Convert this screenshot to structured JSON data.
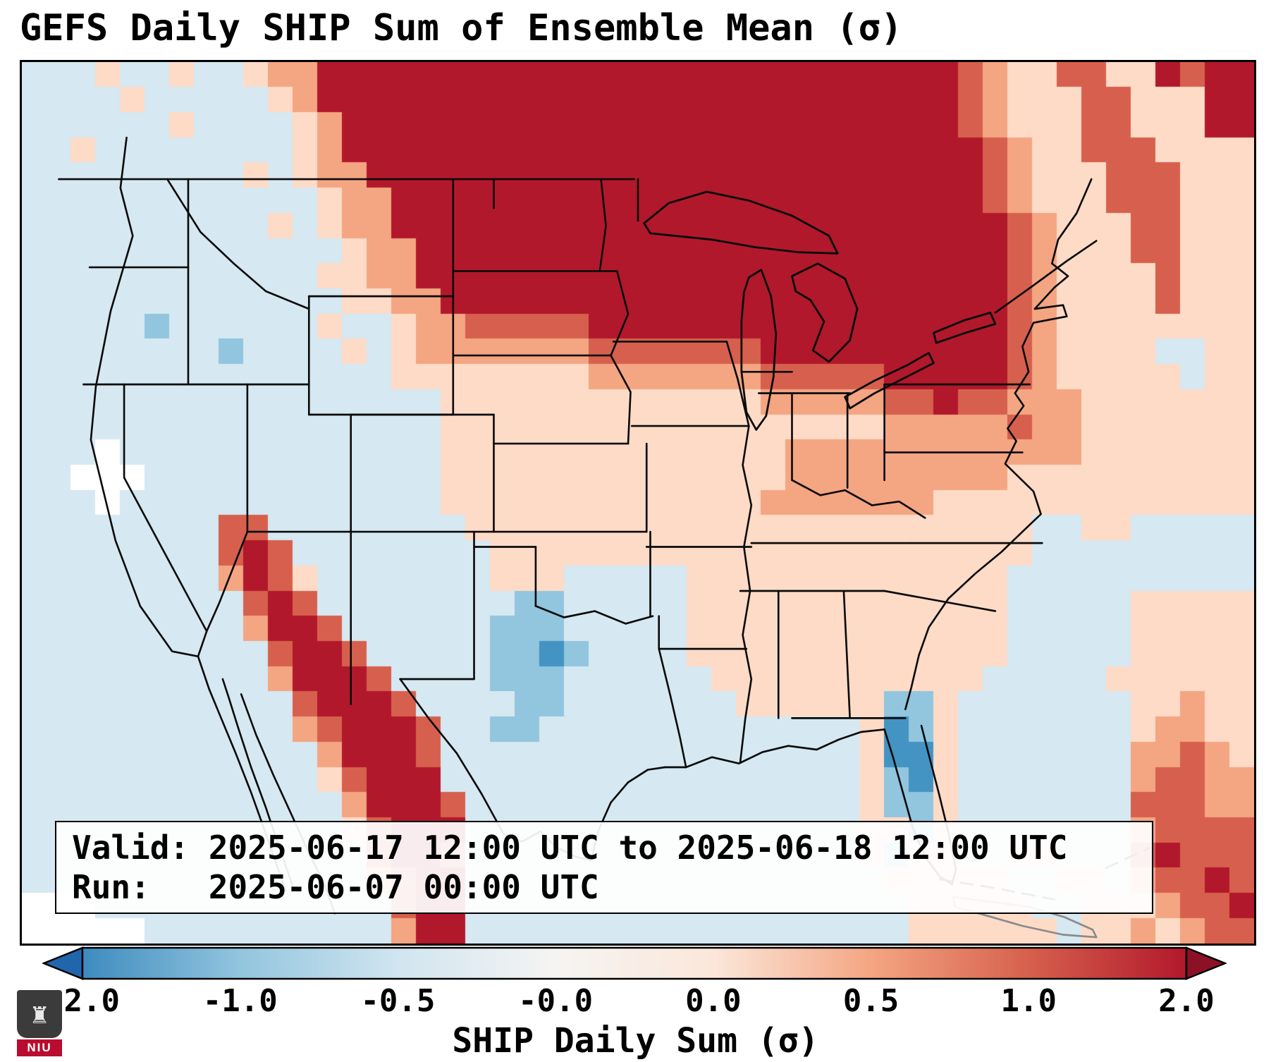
{
  "title": "GEFS Daily SHIP Sum of Ensemble Mean (σ)",
  "info_box": {
    "line1": "Valid: 2025-06-17 12:00 UTC to 2025-06-18 12:00 UTC",
    "line2": "Run:   2025-06-07 00:00 UTC"
  },
  "logo": {
    "text": "NIU",
    "shield_glyph": "♜"
  },
  "chart_data": {
    "type": "heatmap",
    "title": "GEFS Daily SHIP Sum of Ensemble Mean (σ)",
    "region": "Contiguous United States with southern Canada, northern Mexico, Gulf of Mexico and western Atlantic",
    "valid_period": "2025-06-17 12:00 UTC to 2025-06-18 12:00 UTC",
    "run_time": "2025-06-07 00:00 UTC",
    "colorbar": {
      "label": "SHIP Daily Sum (σ)",
      "ticks": [
        "-2.0",
        "-1.0",
        "-0.5",
        "-0.0",
        "0.0",
        "0.5",
        "1.0",
        "2.0"
      ],
      "extend": "both",
      "orientation": "horizontal",
      "under_color": "#2166ac",
      "over_color": "#8c1127",
      "gradient": [
        {
          "offset": 0.0,
          "color": "#3d8bbf"
        },
        {
          "offset": 0.1429,
          "color": "#92c5de"
        },
        {
          "offset": 0.2857,
          "color": "#d1e5f0"
        },
        {
          "offset": 0.4286,
          "color": "#f5f4f2"
        },
        {
          "offset": 0.5714,
          "color": "#fbe7da"
        },
        {
          "offset": 0.7143,
          "color": "#f4a582"
        },
        {
          "offset": 0.8571,
          "color": "#d6604d"
        },
        {
          "offset": 1.0,
          "color": "#b2182b"
        }
      ]
    },
    "palette": {
      "K": "#b2182b",
      "R": "#d6604d",
      "O": "#f4a582",
      "P": "#fddbc7",
      "W": "#f7f7f7",
      "L": "#d6e8f1",
      "M": "#92c5de",
      "B": "#4393c3",
      "X": "#ffffff"
    },
    "palette_meaning": {
      "K": "sigma >= 2.0 (dark red maximum over Upper Midwest / Great Lakes / southern Canada and Sierra Madre in Mexico)",
      "R": "1.0 to 2.0",
      "O": "0.5 to 1.0",
      "P": "0.0 to 0.5",
      "W": "near 0",
      "L": "-0.5 to 0.0 (light blue background over West, South and oceans)",
      "M": "-1.0 to -0.5 (patches over central Texas and Florida peninsula)",
      "B": "below -1.0",
      "X": "no data (white)"
    },
    "grid_rows": 35,
    "grid_cols": 50,
    "grid": [
      "LLLPLLPLLPOOKKKKKKKKKKKKKKKKKKKKKKKKKKROPPRRPPKRKK",
      "LLLLPLLLLLPOKKKKKKKKKKKKKKKKKKKKKKKKKKROPPPRRPPPKK",
      "LLLLLLPLLLLPOKKKKKKKKKKKKKKKKKKKKKKKKKROPPPRRPPPKK",
      "LLPLLLLLLLLPOKKKKKKKKKKKKKKKKKKKKKKKKKKROPPRRRPPPP",
      "LLLLLLLLLPLPOOKKKKKKKKKKKKKKKKKKKKKKKKKROPPPRRRPPP",
      "LLLLLLLLLLLLPOOKKKKKKKKKKKKKKKKKKKKKKKKROPPPRRRPPP",
      "LLLLLLLLLLPLPOOKKKKKKKKKKKKKKKKKKKKKKKKKROPPPRRPPP",
      "LLLLLLLLLLLLLPOOKKKKKKKKKKKKKKKKKKKKKKKKROPPPRRPPP",
      "LLLLLLLLLLLLPPOOKKKKKKKKKKKKKKKKKKKKKKKKROPPPPRPPP",
      "LLLLLLLLLLLLLPPOOKKKKKKKKKKKKKKKKKKKKKKKROPPPPRPPP",
      "LLLLLMLLLLLLPLLPOORRRRRKKKKKKKKKKKKKKKKKROPPPPPPPP",
      "LLLLLLLLMLLLLPLPOOOOOOORRRRRRRKKKKKKKKKKROPPPPLLPP",
      "LLLLLLLLLLLLLLLPPPPPPPPOOOOOOORRRRRKKKKKROPPPPPLPP",
      "LLLLLLLLLLLLLLLLLPPPPPPPPPPPPPOOOOORRKRROOOPPPPPPP",
      "LLLLLLLLLLLLLLLLLPPPPPPPPPPPPPPPPPPOOOOOROOPPPPPPP",
      "LLLXLLLLLLLLLLLLLPPPPPPPPPPPPPPOOOOOOOOOOOOPPPPPPP",
      "LLXXXLLLLLLLLLLLLPPPPPPPPPPPPPPOOOOOOOOOPPPPPPPPPP",
      "LLLXLLLLLLLLLLLLLPPPPPPPPPPPPPOOOOOOOPPPPPPPPPPPPP",
      "LLLLLLLLRRLLLLLLLLPPPPPPPPPPPPPPPPPPPPPPPLLPPLLLLL",
      "LLLLLLLLRKRLLLLLLLLPPPPPPPPPPPPPPPPPPPPPPLLLLLLLLL",
      "LLLLLLLLOKRPLLLLLLLPPPLLLLLPPPPPPPPPPPPPLLLLLLLLLL",
      "LLLLLLLLLRKRLLLLLLLLMMLLLLLPPPPPPPPPPPPPLLLLLPPPPP",
      "LLLLLLLLLOKKRLLLLLLMMMLLLLLPPPPPPPPPPPPPLLLLLPPPPP",
      "LLLLLLLLLLRKKRLLLLLMMBMLLLLPPPPPPPPPPPPPLLLLLPPPPP",
      "LLLLLLLLLLOKKKRLLLLMMMLLLLLLPPPPPPPPPPPLLLLLPPPPPP",
      "LLLLLLLLLLLRKKKRLLLLMMLLLLLLLPPPPPPMMPLLLLLLLPPOPP",
      "LLLLLLLLLLLORKKKRLLMMLLLLLLLLLLLLLPBMPLLLLLLLPOOPP",
      "LLLLLLLLLLLLOKKKRLLLLLLLLLLLLLLLLLPBBPLLLLLLLOOROP",
      "LLLLLLLLLLLLPRKKKLLLLLLLLLLLLLLLLLPMBPLLLLLLLORROO",
      "LLLLLLLLLLLLLOKKKRLLLLLLLLLLLLLLLLPMMPLLLLLLLRRROO",
      "LLLLLLLLLLLLLPRKKKLLLLLLLLLLLLLLLLPPMPLLLLLLLORRRR",
      "LLLLLLLLLLLLLLRKKRLLLLLLLLLLLLLLLLPMPPLLPPLLLRKRRR",
      "LLLLLLLLLLLLLLORKKLLLLLLLLLLLLLLLLLPPPPPLLPPLORRKR",
      "XXXLLLLLLLLLLLLRKKLLLLLLLLLLLLLLLLLLPPPPPLLPPPORRK",
      "XXXXXLLLLLLLLLLOKKLLLLLLLLLLLLLLLLLLPPPPPPLPPOPORR"
    ]
  }
}
